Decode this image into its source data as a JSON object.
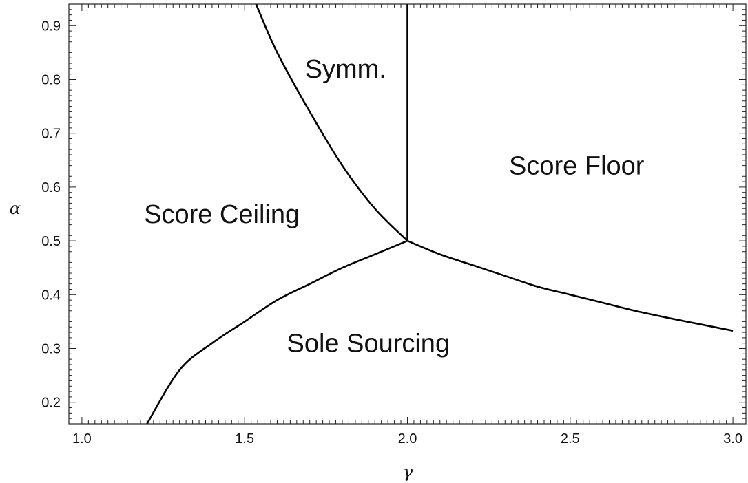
{
  "chart_data": {
    "type": "line",
    "title": "",
    "xlabel": "γ",
    "ylabel": "α",
    "xlim": [
      0.96,
      3.04
    ],
    "ylim": [
      0.16,
      0.94
    ],
    "x_ticks": [
      "1.0",
      "1.5",
      "2.0",
      "2.5",
      "3.0"
    ],
    "y_ticks": [
      "0.2",
      "0.3",
      "0.4",
      "0.5",
      "0.6",
      "0.7",
      "0.8",
      "0.9"
    ],
    "grid": false,
    "series": [
      {
        "x": [
          1.2,
          1.3,
          1.4,
          1.5,
          1.6,
          1.7,
          1.8,
          1.9,
          2.0
        ],
        "y": [
          0.16,
          0.26,
          0.31,
          0.35,
          0.39,
          0.42,
          0.45,
          0.475,
          0.5
        ]
      },
      {
        "x": [
          2.0,
          2.1,
          2.2,
          2.3,
          2.4,
          2.5,
          2.6,
          2.7,
          2.8,
          2.9,
          3.0
        ],
        "y": [
          0.5,
          0.475,
          0.455,
          0.435,
          0.415,
          0.4,
          0.385,
          0.37,
          0.357,
          0.345,
          0.333
        ]
      },
      {
        "x": [
          2.0,
          1.9,
          1.8,
          1.7,
          1.6,
          1.535
        ],
        "y": [
          0.5,
          0.56,
          0.64,
          0.74,
          0.85,
          0.94
        ]
      },
      {
        "x": [
          2.0,
          2.0
        ],
        "y": [
          0.5,
          0.94
        ]
      }
    ],
    "annotations": [
      {
        "text": "Symm.",
        "x": 1.81,
        "y": 0.82
      },
      {
        "text": "Score Floor",
        "x": 2.52,
        "y": 0.64
      },
      {
        "text": "Score Ceiling",
        "x": 1.43,
        "y": 0.55
      },
      {
        "text": "Sole Sourcing",
        "x": 1.88,
        "y": 0.31
      }
    ]
  }
}
